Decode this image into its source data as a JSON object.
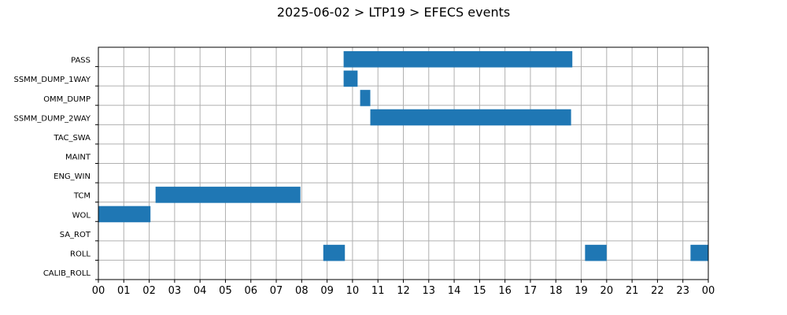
{
  "title": "2025-06-02 > LTP19 > EFECS events",
  "chart_data": {
    "type": "gantt",
    "title": "2025-06-02 > LTP19 > EFECS events",
    "xlabel": "",
    "ylabel": "",
    "xlim_hours": [
      0,
      24
    ],
    "x_ticks": [
      "00",
      "01",
      "02",
      "03",
      "04",
      "05",
      "06",
      "07",
      "08",
      "09",
      "10",
      "11",
      "12",
      "13",
      "14",
      "15",
      "16",
      "17",
      "18",
      "19",
      "20",
      "21",
      "22",
      "23",
      "00"
    ],
    "categories": [
      "PASS",
      "SSMM_DUMP_1WAY",
      "OMM_DUMP",
      "SSMM_DUMP_2WAY",
      "TAC_SWA",
      "MAINT",
      "ENG_WIN",
      "TCM",
      "WOL",
      "SA_ROT",
      "ROLL",
      "CALIB_ROLL"
    ],
    "grid": true,
    "bar_color": "#1f77b4",
    "events": [
      {
        "category": "PASS",
        "start": 9.65,
        "end": 18.65
      },
      {
        "category": "SSMM_DUMP_1WAY",
        "start": 9.65,
        "end": 10.2
      },
      {
        "category": "OMM_DUMP",
        "start": 10.3,
        "end": 10.7
      },
      {
        "category": "SSMM_DUMP_2WAY",
        "start": 10.7,
        "end": 18.6
      },
      {
        "category": "TCM",
        "start": 2.25,
        "end": 7.95
      },
      {
        "category": "WOL",
        "start": 0.0,
        "end": 2.05
      },
      {
        "category": "ROLL",
        "start": 8.85,
        "end": 9.7
      },
      {
        "category": "ROLL",
        "start": 19.15,
        "end": 20.0
      },
      {
        "category": "ROLL",
        "start": 23.3,
        "end": 24.0
      }
    ]
  }
}
